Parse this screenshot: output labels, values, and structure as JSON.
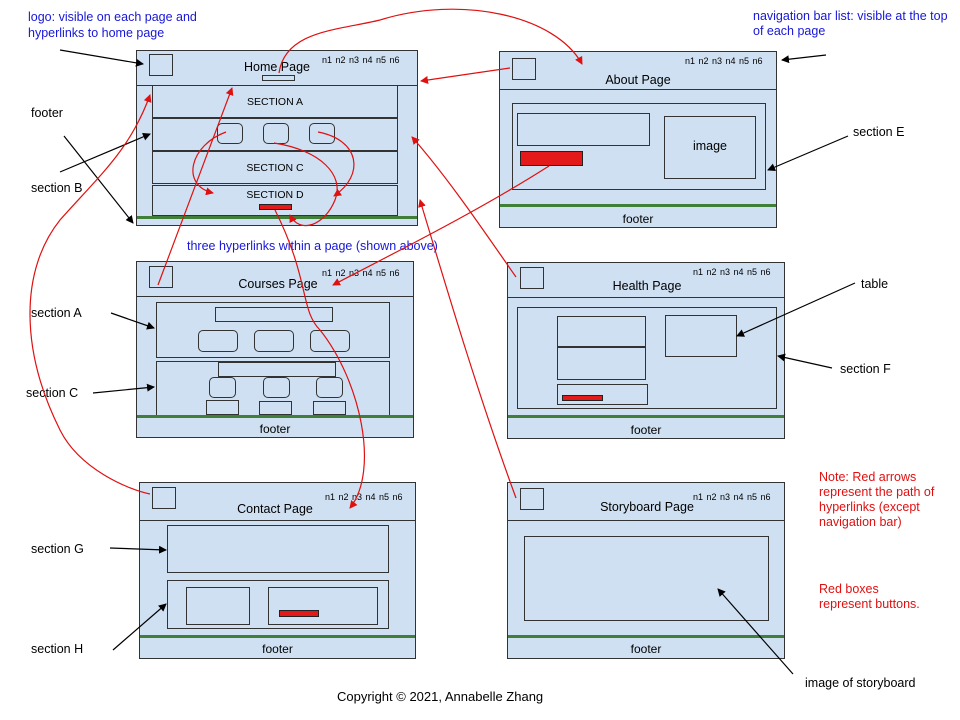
{
  "nav_text": "n1  n2 n3 n4  n5  n6",
  "footer_text": "footer",
  "pages": {
    "home": {
      "title": "Home Page",
      "sections": [
        "SECTION A",
        "SECTION C",
        "SECTION D"
      ]
    },
    "about": {
      "title": "About Page",
      "image_label": "image"
    },
    "courses": {
      "title": "Courses Page"
    },
    "health": {
      "title": "Health Page"
    },
    "contact": {
      "title": "Contact Page"
    },
    "storyboard": {
      "title": "Storyboard Page"
    }
  },
  "annotations": {
    "logo": "logo: visible on each page and hyperlinks to home page",
    "nav": "navigation bar list: visible at the top of each page",
    "footer": "footer",
    "section_b": "section B",
    "section_a": "section A",
    "section_c": "section C",
    "section_g": "section G",
    "section_h": "section H",
    "section_e": "section E",
    "table": "table",
    "section_f": "section F",
    "three_links": "three hyperlinks within a page (shown above)",
    "image_storyboard": "image of storyboard",
    "note_arrows": "Note: Red arrows represent the path of hyperlinks (except navigation bar)",
    "note_buttons": "Red boxes represent buttons."
  },
  "copyright": "Copyright © 2021, Annabelle Zhang",
  "colors": {
    "page_fill": "#cfe0f2",
    "footer_line": "#3f7f3a",
    "button": "#e41a1a",
    "arrow_red": "#e01010",
    "note_blue": "#1717d8"
  }
}
